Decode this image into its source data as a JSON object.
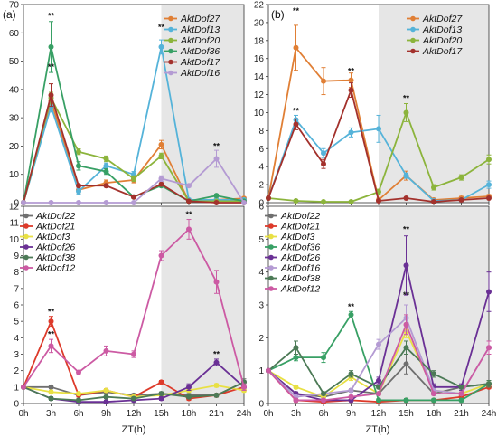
{
  "colors": {
    "AktDof27": "#e07f35",
    "AktDof13": "#55b3d9",
    "AktDof20": "#8cb43c",
    "AktDof36": "#38a065",
    "AktDof17": "#a3312c",
    "AktDof16": "#b49bd3",
    "AktDof22": "#6f6f6f",
    "AktDof21": "#dd3a2a",
    "AktDof3": "#e8e044",
    "AktDof26": "#6a3095",
    "AktDof38": "#4c7a56",
    "AktDof12": "#cc5aa3",
    "shade": "#e6e6e6"
  },
  "x_axis_title": "ZT(h)",
  "chart_data": [
    {
      "panel": "top-left",
      "panel_label": "(a)",
      "type": "line",
      "categories": [
        "0h",
        "3h",
        "6h",
        "9h",
        "12h",
        "15h",
        "18h",
        "21h",
        "24h"
      ],
      "ylim": [
        0,
        70
      ],
      "yticks": [
        0,
        10,
        20,
        30,
        40,
        50,
        60,
        70
      ],
      "shaded_from": "15h",
      "legend": "top-right",
      "series": [
        {
          "name": "AktDof27",
          "values": [
            0,
            36,
            4.5,
            7,
            8,
            20.5,
            0.5,
            1,
            1.5
          ],
          "err": [
            0,
            2,
            1,
            1,
            1,
            1.5,
            0.5,
            0.5,
            0.5
          ]
        },
        {
          "name": "AktDof13",
          "values": [
            0,
            34,
            4,
            13,
            10,
            55,
            1,
            1,
            1
          ],
          "err": [
            0,
            2,
            1,
            1,
            1,
            2.5,
            0.5,
            0.5,
            0.5
          ]
        },
        {
          "name": "AktDof20",
          "values": [
            0,
            37,
            18,
            15.5,
            8.5,
            16.5,
            0.5,
            0.5,
            0.5
          ],
          "err": [
            0,
            2,
            1,
            1,
            1,
            1,
            0.3,
            0.3,
            0.3
          ]
        },
        {
          "name": "AktDof36",
          "values": [
            0,
            55,
            13,
            11,
            2,
            6,
            0.5,
            2.5,
            0.5
          ],
          "err": [
            0,
            9,
            1.5,
            1,
            0.5,
            0.5,
            0.3,
            0.5,
            0.3
          ]
        },
        {
          "name": "AktDof17",
          "values": [
            0,
            38,
            6,
            6,
            2,
            6.5,
            0.5,
            0,
            0
          ],
          "err": [
            0,
            4,
            0.5,
            0.5,
            0.5,
            0.5,
            0.3,
            0.2,
            0.2
          ]
        },
        {
          "name": "AktDof16",
          "values": [
            0,
            0,
            0,
            0,
            0,
            8.5,
            6,
            15.5,
            0
          ],
          "err": [
            0,
            0,
            0,
            0,
            0,
            1,
            0.5,
            3,
            0
          ]
        }
      ],
      "annotations": [
        {
          "text": "**",
          "x": "3h",
          "y": 66
        },
        {
          "text": "**",
          "x": "3h",
          "y": 48
        },
        {
          "text": "**",
          "x": "15h",
          "y": 62
        },
        {
          "text": "**",
          "x": "21h",
          "y": 20
        }
      ]
    },
    {
      "panel": "top-right",
      "panel_label": "(b)",
      "type": "line",
      "categories": [
        "0h",
        "3h",
        "6h",
        "9h",
        "12h",
        "15h",
        "18h",
        "21h",
        "24h"
      ],
      "ylim": [
        0,
        22
      ],
      "yticks": [
        0,
        2,
        4,
        6,
        8,
        10,
        12,
        14,
        16,
        18,
        20,
        22
      ],
      "shaded_from": "12h",
      "legend": "top-right",
      "series": [
        {
          "name": "AktDof27",
          "values": [
            0.5,
            17.2,
            13.5,
            13.6,
            0.3,
            3,
            0.3,
            0.5,
            0.7
          ],
          "err": [
            0,
            2.5,
            1.5,
            0.8,
            0.2,
            0.5,
            0.2,
            0.2,
            0.2
          ]
        },
        {
          "name": "AktDof13",
          "values": [
            0.5,
            9.2,
            5.5,
            7.8,
            8.2,
            3,
            0.2,
            0.3,
            2
          ],
          "err": [
            0,
            0.5,
            0.5,
            0.5,
            1.5,
            0.3,
            0.1,
            0.1,
            0.4
          ]
        },
        {
          "name": "AktDof20",
          "values": [
            0.5,
            0.2,
            0.1,
            0.1,
            1.2,
            10,
            1.7,
            2.8,
            4.8
          ],
          "err": [
            0,
            0.1,
            0.1,
            0.1,
            0.3,
            1,
            0.3,
            0.3,
            0.5
          ]
        },
        {
          "name": "AktDof17",
          "values": [
            0.5,
            8.7,
            4.3,
            12.5,
            0.2,
            0.5,
            0.1,
            0.3,
            0.5
          ],
          "err": [
            0,
            0.6,
            0.5,
            0.8,
            0.1,
            0.1,
            0.1,
            0.1,
            0.1
          ]
        }
      ],
      "annotations": [
        {
          "text": "**",
          "x": "3h",
          "y": 21.3
        },
        {
          "text": "**",
          "x": "3h",
          "y": 10.2
        },
        {
          "text": "**",
          "x": "9h",
          "y": 14.6
        },
        {
          "text": "**",
          "x": "15h",
          "y": 11.6
        }
      ]
    },
    {
      "panel": "bottom-left",
      "type": "line",
      "categories": [
        "0h",
        "3h",
        "6h",
        "9h",
        "12h",
        "15h",
        "18h",
        "21h",
        "24h"
      ],
      "ylim": [
        0,
        12
      ],
      "yticks": [
        0,
        1,
        2,
        3,
        4,
        5,
        6,
        7,
        8,
        9,
        10,
        11,
        12
      ],
      "shaded_from": "15h",
      "legend": "top-left",
      "series": [
        {
          "name": "AktDof22",
          "values": [
            1,
            1,
            0.5,
            0.7,
            0.5,
            0.6,
            0.5,
            0.5,
            1.3
          ],
          "err": [
            0,
            0.1,
            0.1,
            0.1,
            0.1,
            0.1,
            0.1,
            0.1,
            0.2
          ]
        },
        {
          "name": "AktDof21",
          "values": [
            1,
            5,
            0.5,
            0.8,
            0.4,
            1.3,
            0.3,
            0.5,
            1
          ],
          "err": [
            0,
            0.3,
            0.1,
            0.1,
            0.1,
            0.1,
            0.1,
            0.1,
            0.1
          ]
        },
        {
          "name": "AktDof3",
          "values": [
            1,
            0.7,
            0.6,
            0.8,
            0.4,
            0.5,
            0.8,
            1.1,
            0.8
          ],
          "err": [
            0,
            0.1,
            0.1,
            0.1,
            0.1,
            0.1,
            0.1,
            0.1,
            0.1
          ]
        },
        {
          "name": "AktDof26",
          "values": [
            1,
            0.3,
            0.1,
            0.1,
            0.2,
            0.3,
            1,
            2.5,
            1
          ],
          "err": [
            0,
            0.1,
            0.1,
            0.1,
            0.1,
            0.1,
            0.2,
            0.2,
            0.1
          ]
        },
        {
          "name": "AktDof38",
          "values": [
            1,
            0.3,
            0.2,
            0.4,
            0.3,
            0.6,
            0.4,
            0.5,
            1.3
          ],
          "err": [
            0,
            0.1,
            0.1,
            0.1,
            0.1,
            0.1,
            0.1,
            0.1,
            0.1
          ]
        },
        {
          "name": "AktDof12",
          "values": [
            1,
            3.5,
            1.9,
            3.2,
            3,
            9,
            10.6,
            7.4,
            1
          ],
          "err": [
            0,
            0.4,
            0.1,
            0.3,
            0.2,
            0.3,
            0.6,
            0.7,
            0.2
          ]
        }
      ],
      "annotations": [
        {
          "text": "**",
          "x": "3h",
          "y": 5.6
        },
        {
          "text": "**",
          "x": "3h",
          "y": 4.2
        },
        {
          "text": "**",
          "x": "18h",
          "y": 11.5
        },
        {
          "text": "**",
          "x": "21h",
          "y": 3
        }
      ]
    },
    {
      "panel": "bottom-right",
      "type": "line",
      "categories": [
        "0h",
        "3h",
        "6h",
        "9h",
        "12h",
        "15h",
        "18h",
        "21h",
        "24h"
      ],
      "ylim": [
        0,
        6
      ],
      "yticks": [
        0,
        1,
        2,
        3,
        4,
        5,
        6
      ],
      "shaded_from": "12h",
      "legend": "top-left",
      "series": [
        {
          "name": "AktDof22",
          "values": [
            1,
            0.3,
            0.2,
            0.4,
            0.3,
            1.2,
            0.3,
            0.5,
            0.6
          ],
          "err": [
            0,
            0.05,
            0.05,
            0.05,
            0.05,
            0.3,
            0.05,
            0.05,
            0.1
          ]
        },
        {
          "name": "AktDof21",
          "values": [
            1,
            0.1,
            0.05,
            0.1,
            0.05,
            0.1,
            0.1,
            0.2,
            0.5
          ],
          "err": [
            0,
            0.05,
            0.05,
            0.05,
            0.05,
            0.05,
            0.05,
            0.05,
            0.05
          ]
        },
        {
          "name": "AktDof3",
          "values": [
            1,
            0.5,
            0.2,
            0.8,
            0.3,
            2.2,
            0.4,
            0.3,
            0.6
          ],
          "err": [
            0,
            0.05,
            0.05,
            0.1,
            0.05,
            0.2,
            0.05,
            0.05,
            0.1
          ]
        },
        {
          "name": "AktDof36",
          "values": [
            1,
            1.4,
            1.4,
            2.7,
            0.1,
            0.1,
            0.1,
            0.1,
            0.6
          ],
          "err": [
            0,
            0.1,
            0.15,
            0.1,
            0.05,
            0.05,
            0.05,
            0.05,
            0.1
          ]
        },
        {
          "name": "AktDof26",
          "values": [
            1,
            0.3,
            0.1,
            0.1,
            0.7,
            4.2,
            0.5,
            0.5,
            3.4
          ],
          "err": [
            0,
            0.05,
            0.05,
            0.05,
            0.1,
            0.9,
            0.1,
            0.1,
            0.6
          ]
        },
        {
          "name": "AktDof16",
          "values": [
            1,
            0.2,
            0.3,
            0.4,
            1.8,
            2.6,
            0.4,
            0.3,
            1.7
          ],
          "err": [
            0,
            0.05,
            0.05,
            0.05,
            0.15,
            0.4,
            0.05,
            0.05,
            0.2
          ]
        },
        {
          "name": "AktDof38",
          "values": [
            1,
            1.7,
            0.3,
            0.9,
            0.5,
            1.7,
            0.9,
            0.5,
            0.6
          ],
          "err": [
            0,
            0.2,
            0.05,
            0.1,
            0.05,
            0.2,
            0.1,
            0.05,
            0.1
          ]
        },
        {
          "name": "AktDof12",
          "values": [
            1,
            0.1,
            0.1,
            0.2,
            0.3,
            2.4,
            0.3,
            0.3,
            1.7
          ],
          "err": [
            0,
            0.05,
            0.05,
            0.05,
            0.05,
            0.3,
            0.05,
            0.05,
            0.2
          ]
        }
      ],
      "annotations": [
        {
          "text": "**",
          "x": "9h",
          "y": 2.95
        },
        {
          "text": "**",
          "x": "15h",
          "y": 5.3
        },
        {
          "text": "**",
          "x": "15h",
          "y": 3.3
        }
      ]
    }
  ]
}
